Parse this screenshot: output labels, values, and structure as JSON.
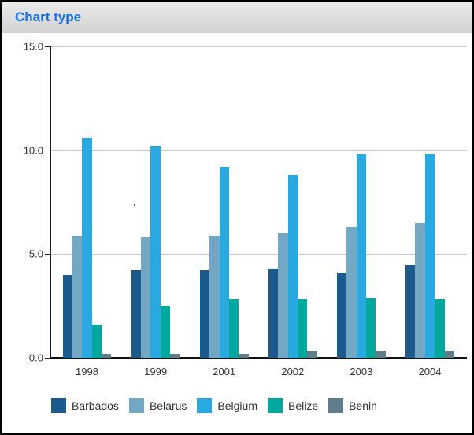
{
  "window": {
    "title": "Chart type"
  },
  "colors": {
    "title_text": "#1471e6",
    "axis": "#1a1a1a",
    "gridline": "#c9c9c9",
    "tick_text": "#333333",
    "legend_text": "#333333"
  },
  "chart_data": {
    "type": "bar",
    "title": "Chart type",
    "categories": [
      "1998",
      "1999",
      "2001",
      "2002",
      "2003",
      "2004"
    ],
    "series": [
      {
        "name": "Barbados",
        "color": "#1b5a8c",
        "values": [
          4.0,
          4.2,
          4.2,
          4.3,
          4.1,
          4.5
        ]
      },
      {
        "name": "Belarus",
        "color": "#74a7c4",
        "values": [
          5.9,
          5.8,
          5.9,
          6.0,
          6.3,
          6.5
        ]
      },
      {
        "name": "Belgium",
        "color": "#2aa9e0",
        "values": [
          10.6,
          10.2,
          9.2,
          8.8,
          9.8,
          9.8
        ]
      },
      {
        "name": "Belize",
        "color": "#00a79c",
        "values": [
          1.6,
          2.5,
          2.8,
          2.8,
          2.9,
          2.8
        ]
      },
      {
        "name": "Benin",
        "color": "#5f7d8c",
        "values": [
          0.2,
          0.2,
          0.2,
          0.3,
          0.3,
          0.3
        ]
      }
    ],
    "ylim": [
      0,
      15
    ],
    "yticks": [
      {
        "value": 15,
        "label": "15.0"
      },
      {
        "value": 10,
        "label": "10.0"
      },
      {
        "value": 5,
        "label": "5.0"
      },
      {
        "value": 0,
        "label": "0.0"
      }
    ],
    "xlabel": "",
    "ylabel": "",
    "grid": true,
    "legend_position": "bottom"
  }
}
